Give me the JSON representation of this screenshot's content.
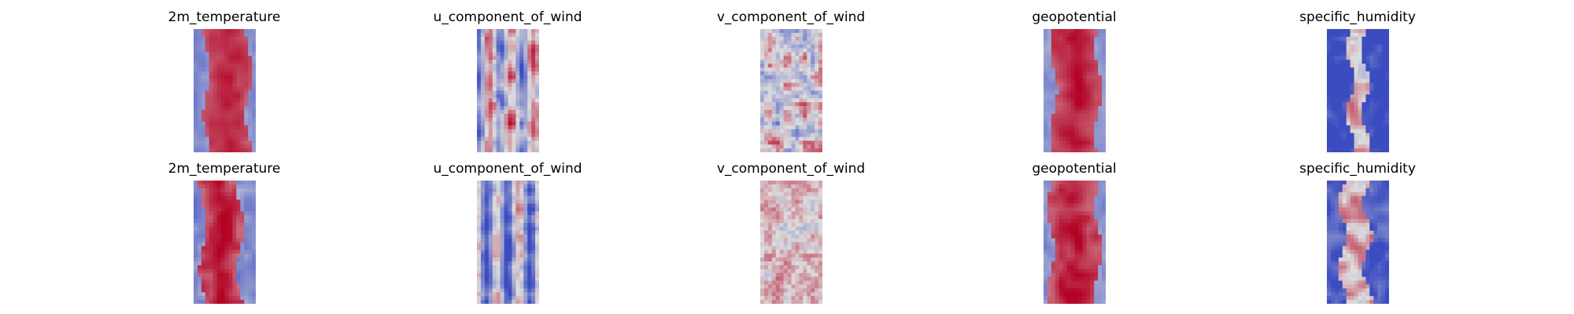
{
  "figure": {
    "rows": [
      {
        "panels": [
          {
            "title": "2m_temperature"
          },
          {
            "title": "u_component_of_wind"
          },
          {
            "title": "v_component_of_wind"
          },
          {
            "title": "geopotential"
          },
          {
            "title": "specific_humidity"
          }
        ]
      },
      {
        "panels": [
          {
            "title": "2m_temperature"
          },
          {
            "title": "u_component_of_wind"
          },
          {
            "title": "v_component_of_wind"
          },
          {
            "title": "geopotential"
          },
          {
            "title": "specific_humidity"
          }
        ]
      }
    ]
  },
  "chart_data": {
    "type": "heatmap",
    "colormap": "coolwarm",
    "colors": {
      "low": "#3b4cc0",
      "mid": "#dddddd",
      "high": "#b40426"
    },
    "axes_visible": false,
    "grid": false,
    "panels": [
      {
        "row": 0,
        "col": 0,
        "title": "2m_temperature",
        "pattern": "band",
        "center": 0.55,
        "width": 0.34,
        "bias": 0.2,
        "noise": 0.15,
        "seed": 11
      },
      {
        "row": 0,
        "col": 1,
        "title": "u_component_of_wind",
        "pattern": "streaks",
        "bias": -0.05,
        "noise": 0.55,
        "seed": 23
      },
      {
        "row": 0,
        "col": 2,
        "title": "v_component_of_wind",
        "pattern": "patchy",
        "bias": 0.0,
        "noise": 0.7,
        "seed": 37
      },
      {
        "row": 0,
        "col": 3,
        "title": "geopotential",
        "pattern": "band",
        "center": 0.52,
        "width": 0.36,
        "bias": 0.3,
        "noise": 0.15,
        "seed": 41
      },
      {
        "row": 0,
        "col": 4,
        "title": "specific_humidity",
        "pattern": "humid",
        "center": 0.5,
        "width": 0.12,
        "bias": -0.7,
        "noise": 0.3,
        "seed": 53
      },
      {
        "row": 1,
        "col": 0,
        "title": "2m_temperature",
        "pattern": "band",
        "center": 0.45,
        "width": 0.3,
        "bias": 0.15,
        "noise": 0.25,
        "seed": 61
      },
      {
        "row": 1,
        "col": 1,
        "title": "u_component_of_wind",
        "pattern": "streaks",
        "bias": -0.35,
        "noise": 0.45,
        "seed": 71
      },
      {
        "row": 1,
        "col": 2,
        "title": "v_component_of_wind",
        "pattern": "patchy",
        "bias": 0.15,
        "noise": 0.35,
        "seed": 83
      },
      {
        "row": 1,
        "col": 3,
        "title": "geopotential",
        "pattern": "band",
        "center": 0.5,
        "width": 0.38,
        "bias": 0.35,
        "noise": 0.2,
        "seed": 97
      },
      {
        "row": 1,
        "col": 4,
        "title": "specific_humidity",
        "pattern": "humid",
        "center": 0.45,
        "width": 0.2,
        "bias": -0.45,
        "noise": 0.35,
        "seed": 103
      }
    ]
  }
}
